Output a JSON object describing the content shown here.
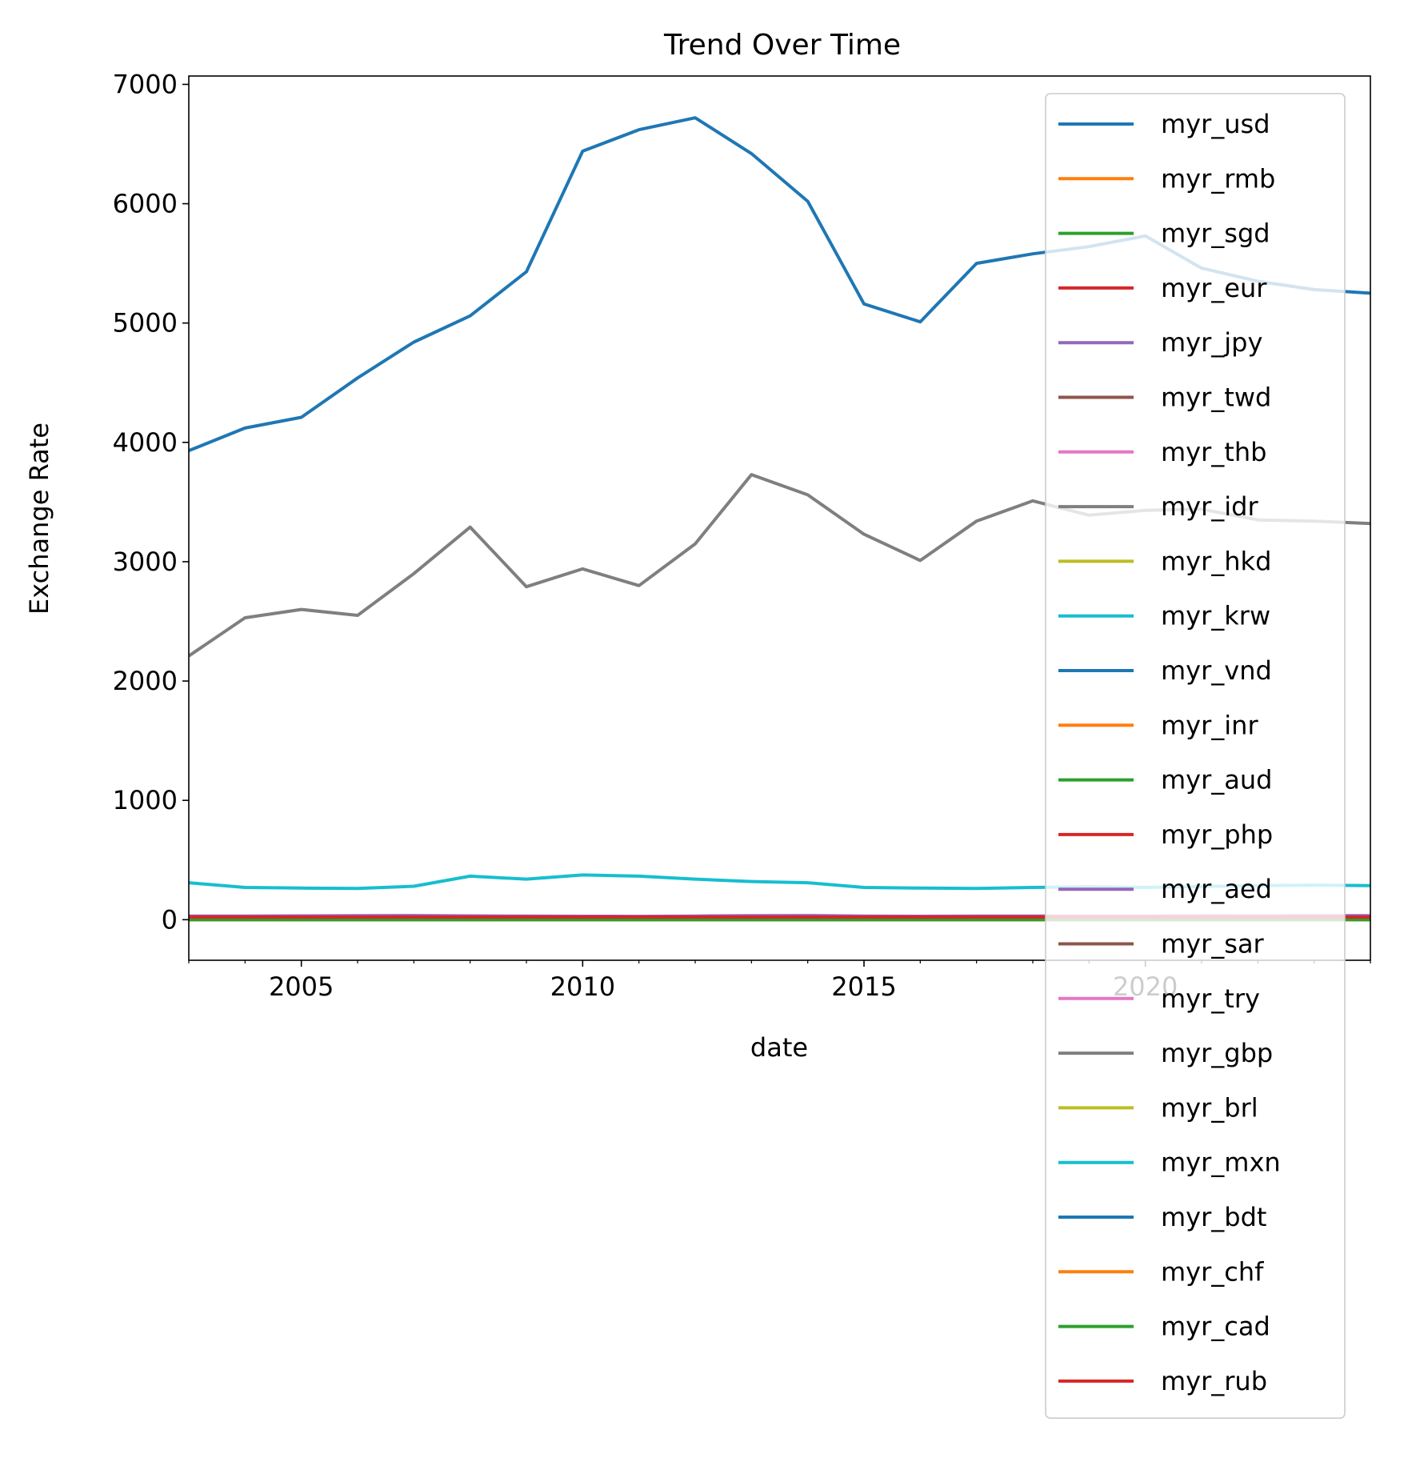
{
  "chart_data": {
    "type": "line",
    "title": "Trend Over Time",
    "xlabel": "date",
    "ylabel": "Exchange Rate",
    "xlim": [
      2003,
      2024
    ],
    "ylim": [
      -340,
      7070
    ],
    "xticks": [
      2005,
      2010,
      2015,
      2020
    ],
    "yticks": [
      0,
      1000,
      2000,
      3000,
      4000,
      5000,
      6000,
      7000
    ],
    "grid": false,
    "legend_position": "upper right",
    "x": [
      2003,
      2004,
      2005,
      2006,
      2007,
      2008,
      2009,
      2010,
      2011,
      2012,
      2013,
      2014,
      2015,
      2016,
      2017,
      2018,
      2019,
      2020,
      2021,
      2022,
      2023,
      2024
    ],
    "series": [
      {
        "name": "myr_usd",
        "color": "#1f77b4",
        "values": [
          3930,
          4120,
          4210,
          4540,
          4840,
          5060,
          5430,
          6440,
          6620,
          6720,
          6420,
          6020,
          5160,
          5010,
          5500,
          5580,
          5640,
          5730,
          5460,
          5350,
          5280,
          5250
        ]
      },
      {
        "name": "myr_rmb",
        "color": "#ff7f0e",
        "values": [
          2,
          2,
          2,
          2,
          2,
          2,
          2,
          2,
          2,
          2,
          2,
          2,
          2,
          2,
          2,
          2,
          2,
          2,
          2,
          2,
          2,
          2
        ]
      },
      {
        "name": "myr_sgd",
        "color": "#2ca02c",
        "values": [
          1,
          1,
          1,
          1,
          1,
          1,
          1,
          1,
          1,
          1,
          1,
          1,
          1,
          1,
          1,
          1,
          1,
          1,
          1,
          1,
          1,
          1
        ]
      },
      {
        "name": "myr_eur",
        "color": "#d62728",
        "values": [
          5,
          5,
          5,
          5,
          5,
          5,
          5,
          5,
          5,
          5,
          5,
          5,
          5,
          5,
          5,
          5,
          5,
          5,
          5,
          5,
          5,
          5
        ]
      },
      {
        "name": "myr_jpy",
        "color": "#9467bd",
        "values": [
          31,
          30,
          32,
          34,
          35,
          32,
          30,
          29,
          28,
          31,
          34,
          35,
          30,
          29,
          30,
          31,
          31,
          31,
          33,
          32,
          34,
          34
        ]
      },
      {
        "name": "myr_twd",
        "color": "#8c564b",
        "values": [
          9,
          9,
          9,
          9,
          9,
          9,
          9,
          9,
          9,
          9,
          9,
          9,
          9,
          9,
          9,
          9,
          9,
          9,
          9,
          9,
          9,
          9
        ]
      },
      {
        "name": "myr_thb",
        "color": "#e377c2",
        "values": [
          10,
          10,
          10,
          10,
          10,
          10,
          10,
          10,
          10,
          10,
          10,
          10,
          10,
          10,
          10,
          10,
          10,
          10,
          10,
          10,
          10,
          10
        ]
      },
      {
        "name": "myr_idr",
        "color": "#7f7f7f",
        "values": [
          2210,
          2530,
          2600,
          2550,
          2900,
          3290,
          2790,
          2940,
          2800,
          3150,
          3730,
          3560,
          3230,
          3010,
          3340,
          3510,
          3390,
          3430,
          3440,
          3350,
          3340,
          3320
        ]
      },
      {
        "name": "myr_hkd",
        "color": "#bcbd22",
        "values": [
          2,
          2,
          2,
          2,
          2,
          2,
          2,
          2,
          2,
          2,
          2,
          2,
          2,
          2,
          2,
          2,
          2,
          2,
          2,
          2,
          2,
          2
        ]
      },
      {
        "name": "myr_krw",
        "color": "#17becf",
        "values": [
          310,
          270,
          265,
          262,
          280,
          365,
          340,
          375,
          365,
          340,
          320,
          310,
          270,
          265,
          262,
          270,
          275,
          270,
          278,
          285,
          290,
          285
        ]
      },
      {
        "name": "myr_vnd",
        "color": "#1f77b4",
        "values": [
          5,
          5,
          5,
          5,
          5,
          5,
          5,
          5,
          5,
          5,
          5,
          5,
          5,
          5,
          5,
          5,
          5,
          5,
          5,
          5,
          5,
          5
        ]
      },
      {
        "name": "myr_inr",
        "color": "#ff7f0e",
        "values": [
          18,
          18,
          18,
          18,
          18,
          18,
          18,
          18,
          18,
          18,
          18,
          18,
          18,
          18,
          18,
          18,
          18,
          18,
          18,
          18,
          18,
          18
        ]
      },
      {
        "name": "myr_aud",
        "color": "#2ca02c",
        "values": [
          0,
          0,
          0,
          0,
          0,
          0,
          0,
          0,
          0,
          0,
          0,
          0,
          0,
          0,
          0,
          0,
          0,
          0,
          0,
          0,
          0,
          0
        ]
      },
      {
        "name": "myr_php",
        "color": "#d62728",
        "values": [
          14,
          14,
          14,
          14,
          14,
          14,
          14,
          14,
          14,
          14,
          14,
          14,
          14,
          14,
          14,
          14,
          14,
          14,
          14,
          14,
          14,
          14
        ]
      },
      {
        "name": "myr_aed",
        "color": "#9467bd",
        "values": [
          1,
          1,
          1,
          1,
          1,
          1,
          1,
          1,
          1,
          1,
          1,
          1,
          1,
          1,
          1,
          1,
          1,
          1,
          1,
          1,
          1,
          1
        ]
      },
      {
        "name": "myr_sar",
        "color": "#8c564b",
        "values": [
          1,
          1,
          1,
          1,
          1,
          1,
          1,
          1,
          1,
          1,
          1,
          1,
          1,
          1,
          1,
          1,
          1,
          1,
          1,
          1,
          1,
          1
        ]
      },
      {
        "name": "myr_try",
        "color": "#e377c2",
        "values": [
          2,
          2,
          2,
          2,
          2,
          2,
          2,
          2,
          2,
          2,
          2,
          2,
          2,
          2,
          2,
          2,
          2,
          2,
          2,
          2,
          2,
          2
        ]
      },
      {
        "name": "myr_gbp",
        "color": "#7f7f7f",
        "values": [
          0,
          0,
          0,
          0,
          0,
          0,
          0,
          0,
          0,
          0,
          0,
          0,
          0,
          0,
          0,
          0,
          0,
          0,
          0,
          0,
          0,
          0
        ]
      },
      {
        "name": "myr_brl",
        "color": "#bcbd22",
        "values": [
          1,
          1,
          1,
          1,
          1,
          1,
          1,
          1,
          1,
          1,
          1,
          1,
          1,
          1,
          1,
          1,
          1,
          1,
          1,
          1,
          1,
          1
        ]
      },
      {
        "name": "myr_mxn",
        "color": "#17becf",
        "values": [
          4,
          4,
          4,
          4,
          4,
          4,
          4,
          4,
          4,
          4,
          4,
          4,
          4,
          4,
          4,
          4,
          4,
          4,
          4,
          4,
          4,
          4
        ]
      },
      {
        "name": "myr_bdt",
        "color": "#1f77b4",
        "values": [
          20,
          20,
          20,
          20,
          20,
          20,
          20,
          20,
          20,
          20,
          20,
          20,
          20,
          20,
          20,
          20,
          20,
          20,
          20,
          20,
          20,
          20
        ]
      },
      {
        "name": "myr_chf",
        "color": "#ff7f0e",
        "values": [
          0,
          0,
          0,
          0,
          0,
          0,
          0,
          0,
          0,
          0,
          0,
          0,
          0,
          0,
          0,
          0,
          0,
          0,
          0,
          0,
          0,
          0
        ]
      },
      {
        "name": "myr_cad",
        "color": "#2ca02c",
        "values": [
          0,
          0,
          0,
          0,
          0,
          0,
          0,
          0,
          0,
          0,
          0,
          0,
          0,
          0,
          0,
          0,
          0,
          0,
          0,
          0,
          0,
          0
        ]
      },
      {
        "name": "myr_rub",
        "color": "#d62728",
        "values": [
          22,
          22,
          22,
          22,
          22,
          22,
          22,
          22,
          22,
          22,
          22,
          22,
          22,
          22,
          22,
          22,
          22,
          22,
          22,
          22,
          22,
          22
        ]
      }
    ]
  }
}
